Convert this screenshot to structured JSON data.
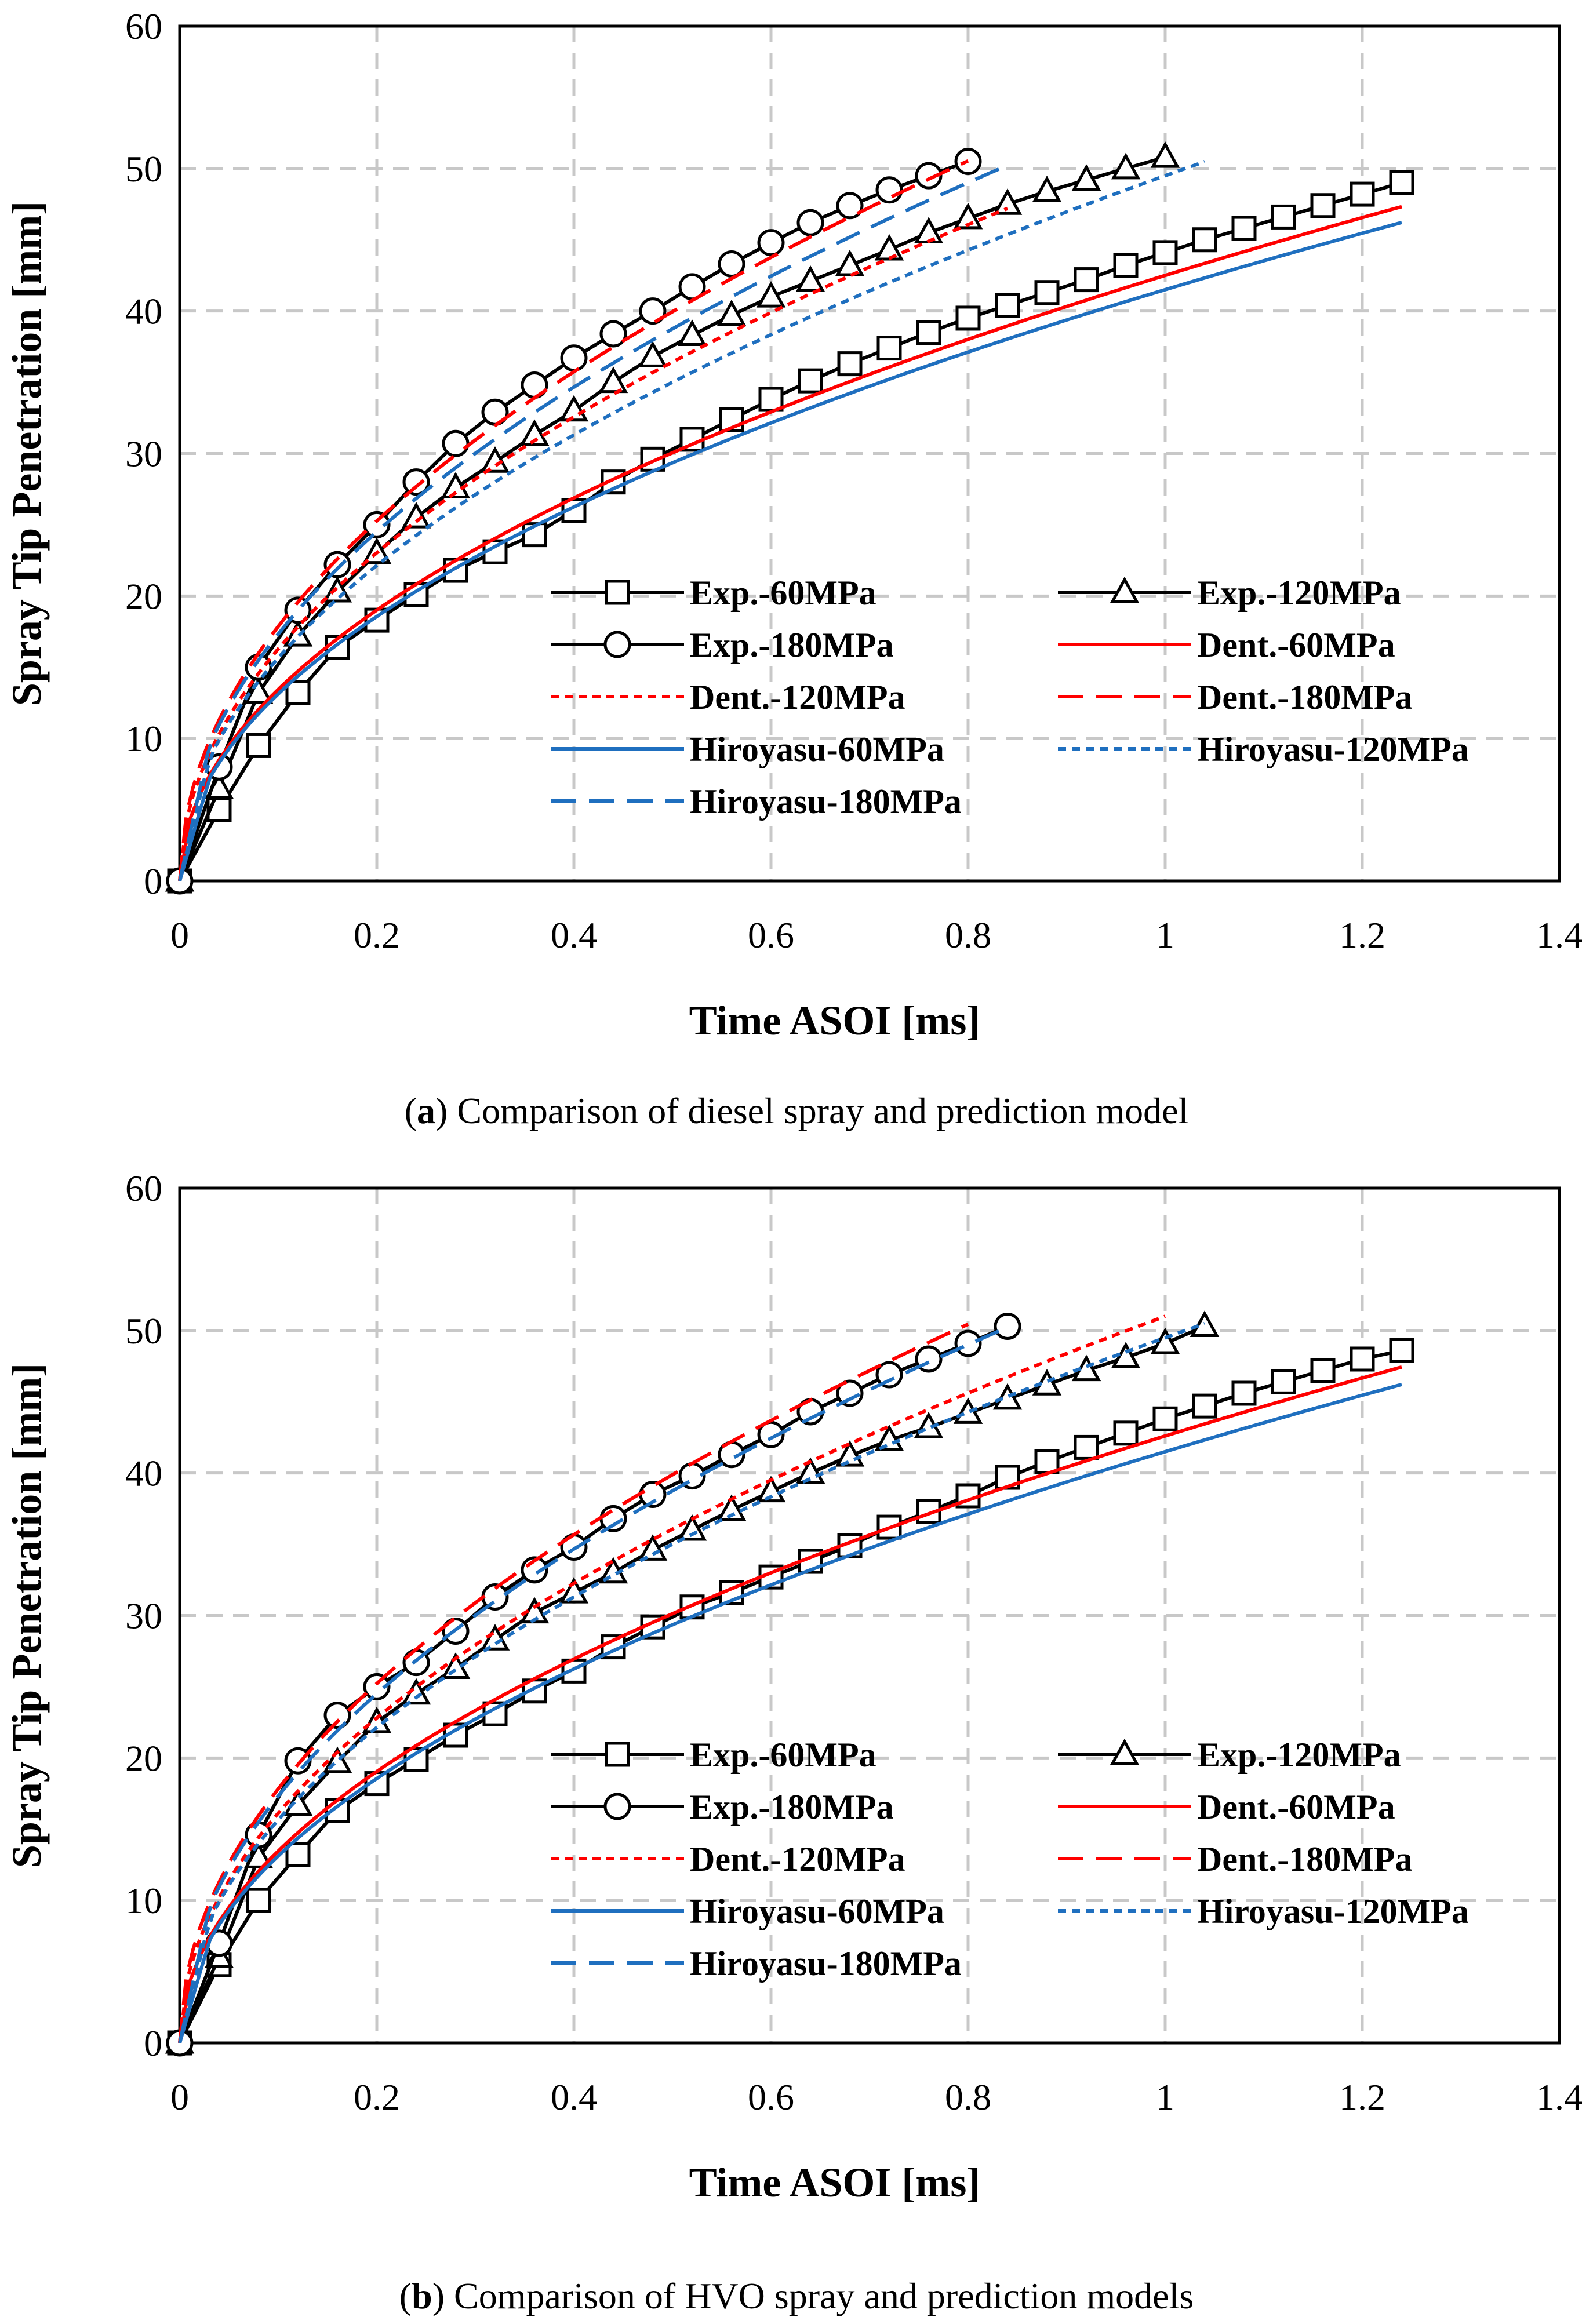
{
  "chart_data": [
    {
      "type": "line",
      "label": "a",
      "caption": "Comparison of diesel spray and prediction model",
      "xlabel": "Time ASOI [ms]",
      "ylabel": "Spray Tip Penetration [mm]",
      "xlim": [
        0,
        1.4
      ],
      "ylim": [
        0,
        60
      ],
      "xticks": [
        "0",
        "0.2",
        "0.4",
        "0.6",
        "0.8",
        "1",
        "1.2",
        "1.4"
      ],
      "yticks": [
        "0",
        "10",
        "20",
        "30",
        "40",
        "50",
        "60"
      ],
      "grid": true,
      "legend_position": "bottom-right",
      "series": [
        {
          "name": "Exp.-60MPa",
          "color": "#000000",
          "dash": "solid",
          "marker": "square",
          "x": [
            0,
            0.04,
            0.08,
            0.12,
            0.16,
            0.2,
            0.24,
            0.28,
            0.32,
            0.36,
            0.4,
            0.44,
            0.48,
            0.52,
            0.56,
            0.6,
            0.64,
            0.68,
            0.72,
            0.76,
            0.8,
            0.84,
            0.88,
            0.92,
            0.96,
            1.0,
            1.04,
            1.08,
            1.12,
            1.16,
            1.2,
            1.24
          ],
          "y": [
            0,
            5,
            9.5,
            13.2,
            16.4,
            18.3,
            20.1,
            21.8,
            23.1,
            24.3,
            26.0,
            28.0,
            29.6,
            31.0,
            32.4,
            33.8,
            35.1,
            36.3,
            37.4,
            38.5,
            39.5,
            40.4,
            41.3,
            42.2,
            43.2,
            44.1,
            45.0,
            45.8,
            46.6,
            47.4,
            48.2,
            49.0
          ]
        },
        {
          "name": "Exp.-120MPa",
          "color": "#000000",
          "dash": "solid",
          "marker": "triangle",
          "x": [
            0,
            0.04,
            0.08,
            0.12,
            0.16,
            0.2,
            0.24,
            0.28,
            0.32,
            0.36,
            0.4,
            0.44,
            0.48,
            0.52,
            0.56,
            0.6,
            0.64,
            0.68,
            0.72,
            0.76,
            0.8,
            0.84,
            0.88,
            0.92,
            0.96,
            1.0
          ],
          "y": [
            0,
            6.5,
            13.2,
            17.2,
            20.3,
            23.0,
            25.5,
            27.6,
            29.4,
            31.3,
            33.0,
            35.0,
            36.8,
            38.3,
            39.7,
            41.0,
            42.1,
            43.2,
            44.3,
            45.5,
            46.5,
            47.5,
            48.4,
            49.2,
            50.0,
            50.8
          ]
        },
        {
          "name": "Exp.-180MPa",
          "color": "#000000",
          "dash": "solid",
          "marker": "circle",
          "x": [
            0,
            0.04,
            0.08,
            0.12,
            0.16,
            0.2,
            0.24,
            0.28,
            0.32,
            0.36,
            0.4,
            0.44,
            0.48,
            0.52,
            0.56,
            0.6,
            0.64,
            0.68,
            0.72,
            0.76,
            0.8
          ],
          "y": [
            0,
            8.0,
            15.0,
            19.0,
            22.2,
            25.0,
            28.0,
            30.7,
            32.9,
            34.8,
            36.7,
            38.4,
            40.0,
            41.7,
            43.3,
            44.8,
            46.2,
            47.4,
            48.5,
            49.5,
            50.5
          ]
        },
        {
          "name": "Dent.-60MPa",
          "color": "#ff0000",
          "dash": "solid",
          "marker": "none",
          "model": "dent",
          "coef": 42.5,
          "tmax": 1.24
        },
        {
          "name": "Dent.-120MPa",
          "color": "#ff0000",
          "dash": "dotted",
          "marker": "none",
          "model": "dent",
          "coef": 51.5,
          "tmax": 0.84
        },
        {
          "name": "Dent.-180MPa",
          "color": "#ff0000",
          "dash": "dashed",
          "marker": "none",
          "model": "dent",
          "coef": 56.5,
          "tmax": 0.8
        },
        {
          "name": "Hiroyasu-60MPa",
          "color": "#1f6fbf",
          "dash": "solid",
          "marker": "none",
          "model": "hiroyasu",
          "coef": 41.5,
          "tmax": 1.24
        },
        {
          "name": "Hiroyasu-120MPa",
          "color": "#1f6fbf",
          "dash": "dotted",
          "marker": "none",
          "model": "hiroyasu",
          "coef": 49.5,
          "tmax": 1.04
        },
        {
          "name": "Hiroyasu-180MPa",
          "color": "#1f6fbf",
          "dash": "dashed",
          "marker": "none",
          "model": "hiroyasu",
          "coef": 54.8,
          "tmax": 0.84
        }
      ]
    },
    {
      "type": "line",
      "label": "b",
      "caption": "Comparison of HVO spray and prediction models",
      "xlabel": "Time ASOI [ms]",
      "ylabel": "Spray Tip Penetration [mm]",
      "xlim": [
        0,
        1.4
      ],
      "ylim": [
        0,
        60
      ],
      "xticks": [
        "0",
        "0.2",
        "0.4",
        "0.6",
        "0.8",
        "1",
        "1.2",
        "1.4"
      ],
      "yticks": [
        "0",
        "10",
        "20",
        "30",
        "40",
        "50",
        "60"
      ],
      "grid": true,
      "legend_position": "bottom-right",
      "series": [
        {
          "name": "Exp.-60MPa",
          "color": "#000000",
          "dash": "solid",
          "marker": "square",
          "x": [
            0,
            0.04,
            0.08,
            0.12,
            0.16,
            0.2,
            0.24,
            0.28,
            0.32,
            0.36,
            0.4,
            0.44,
            0.48,
            0.52,
            0.56,
            0.6,
            0.64,
            0.68,
            0.72,
            0.76,
            0.8,
            0.84,
            0.88,
            0.92,
            0.96,
            1.0,
            1.04,
            1.08,
            1.12,
            1.16,
            1.2,
            1.24
          ],
          "y": [
            0,
            5.5,
            10.0,
            13.2,
            16.3,
            18.2,
            19.9,
            21.6,
            23.1,
            24.7,
            26.1,
            27.8,
            29.2,
            30.6,
            31.6,
            32.7,
            33.8,
            34.9,
            36.2,
            37.3,
            38.4,
            39.7,
            40.8,
            41.8,
            42.8,
            43.8,
            44.7,
            45.6,
            46.4,
            47.2,
            48.0,
            48.6
          ]
        },
        {
          "name": "Exp.-120MPa",
          "color": "#000000",
          "dash": "solid",
          "marker": "triangle",
          "x": [
            0,
            0.04,
            0.08,
            0.12,
            0.16,
            0.2,
            0.24,
            0.28,
            0.32,
            0.36,
            0.4,
            0.44,
            0.48,
            0.52,
            0.56,
            0.6,
            0.64,
            0.68,
            0.72,
            0.76,
            0.8,
            0.84,
            0.88,
            0.92,
            0.96,
            1.0,
            1.04
          ],
          "y": [
            0,
            6.0,
            13.0,
            16.7,
            19.7,
            22.5,
            24.5,
            26.3,
            28.3,
            30.2,
            31.6,
            33.0,
            34.6,
            36.0,
            37.4,
            38.7,
            40.0,
            41.2,
            42.3,
            43.2,
            44.2,
            45.2,
            46.2,
            47.2,
            48.1,
            49.1,
            50.3
          ]
        },
        {
          "name": "Exp.-180MPa",
          "color": "#000000",
          "dash": "solid",
          "marker": "circle",
          "x": [
            0,
            0.04,
            0.08,
            0.12,
            0.16,
            0.2,
            0.24,
            0.28,
            0.32,
            0.36,
            0.4,
            0.44,
            0.48,
            0.52,
            0.56,
            0.6,
            0.64,
            0.68,
            0.72,
            0.76,
            0.8,
            0.84
          ],
          "y": [
            0,
            7.0,
            14.6,
            19.8,
            23.0,
            25.0,
            26.7,
            28.9,
            31.3,
            33.2,
            34.8,
            36.8,
            38.5,
            39.8,
            41.3,
            42.7,
            44.3,
            45.6,
            46.9,
            48.0,
            49.1,
            50.3
          ]
        },
        {
          "name": "Dent.-60MPa",
          "color": "#ff0000",
          "dash": "solid",
          "marker": "none",
          "model": "dent",
          "coef": 42.6,
          "tmax": 1.24
        },
        {
          "name": "Dent.-120MPa",
          "color": "#ff0000",
          "dash": "dotted",
          "marker": "none",
          "model": "dent",
          "coef": 51.0,
          "tmax": 1.0
        },
        {
          "name": "Dent.-180MPa",
          "color": "#ff0000",
          "dash": "dashed",
          "marker": "none",
          "model": "dent",
          "coef": 56.4,
          "tmax": 0.8
        },
        {
          "name": "Hiroyasu-60MPa",
          "color": "#1f6fbf",
          "dash": "solid",
          "marker": "none",
          "model": "hiroyasu",
          "coef": 41.5,
          "tmax": 1.24
        },
        {
          "name": "Hiroyasu-120MPa",
          "color": "#1f6fbf",
          "dash": "dotted",
          "marker": "none",
          "model": "hiroyasu",
          "coef": 49.5,
          "tmax": 1.04
        },
        {
          "name": "Hiroyasu-180MPa",
          "color": "#1f6fbf",
          "dash": "dashed",
          "marker": "none",
          "model": "hiroyasu",
          "coef": 54.8,
          "tmax": 0.84
        }
      ]
    }
  ]
}
